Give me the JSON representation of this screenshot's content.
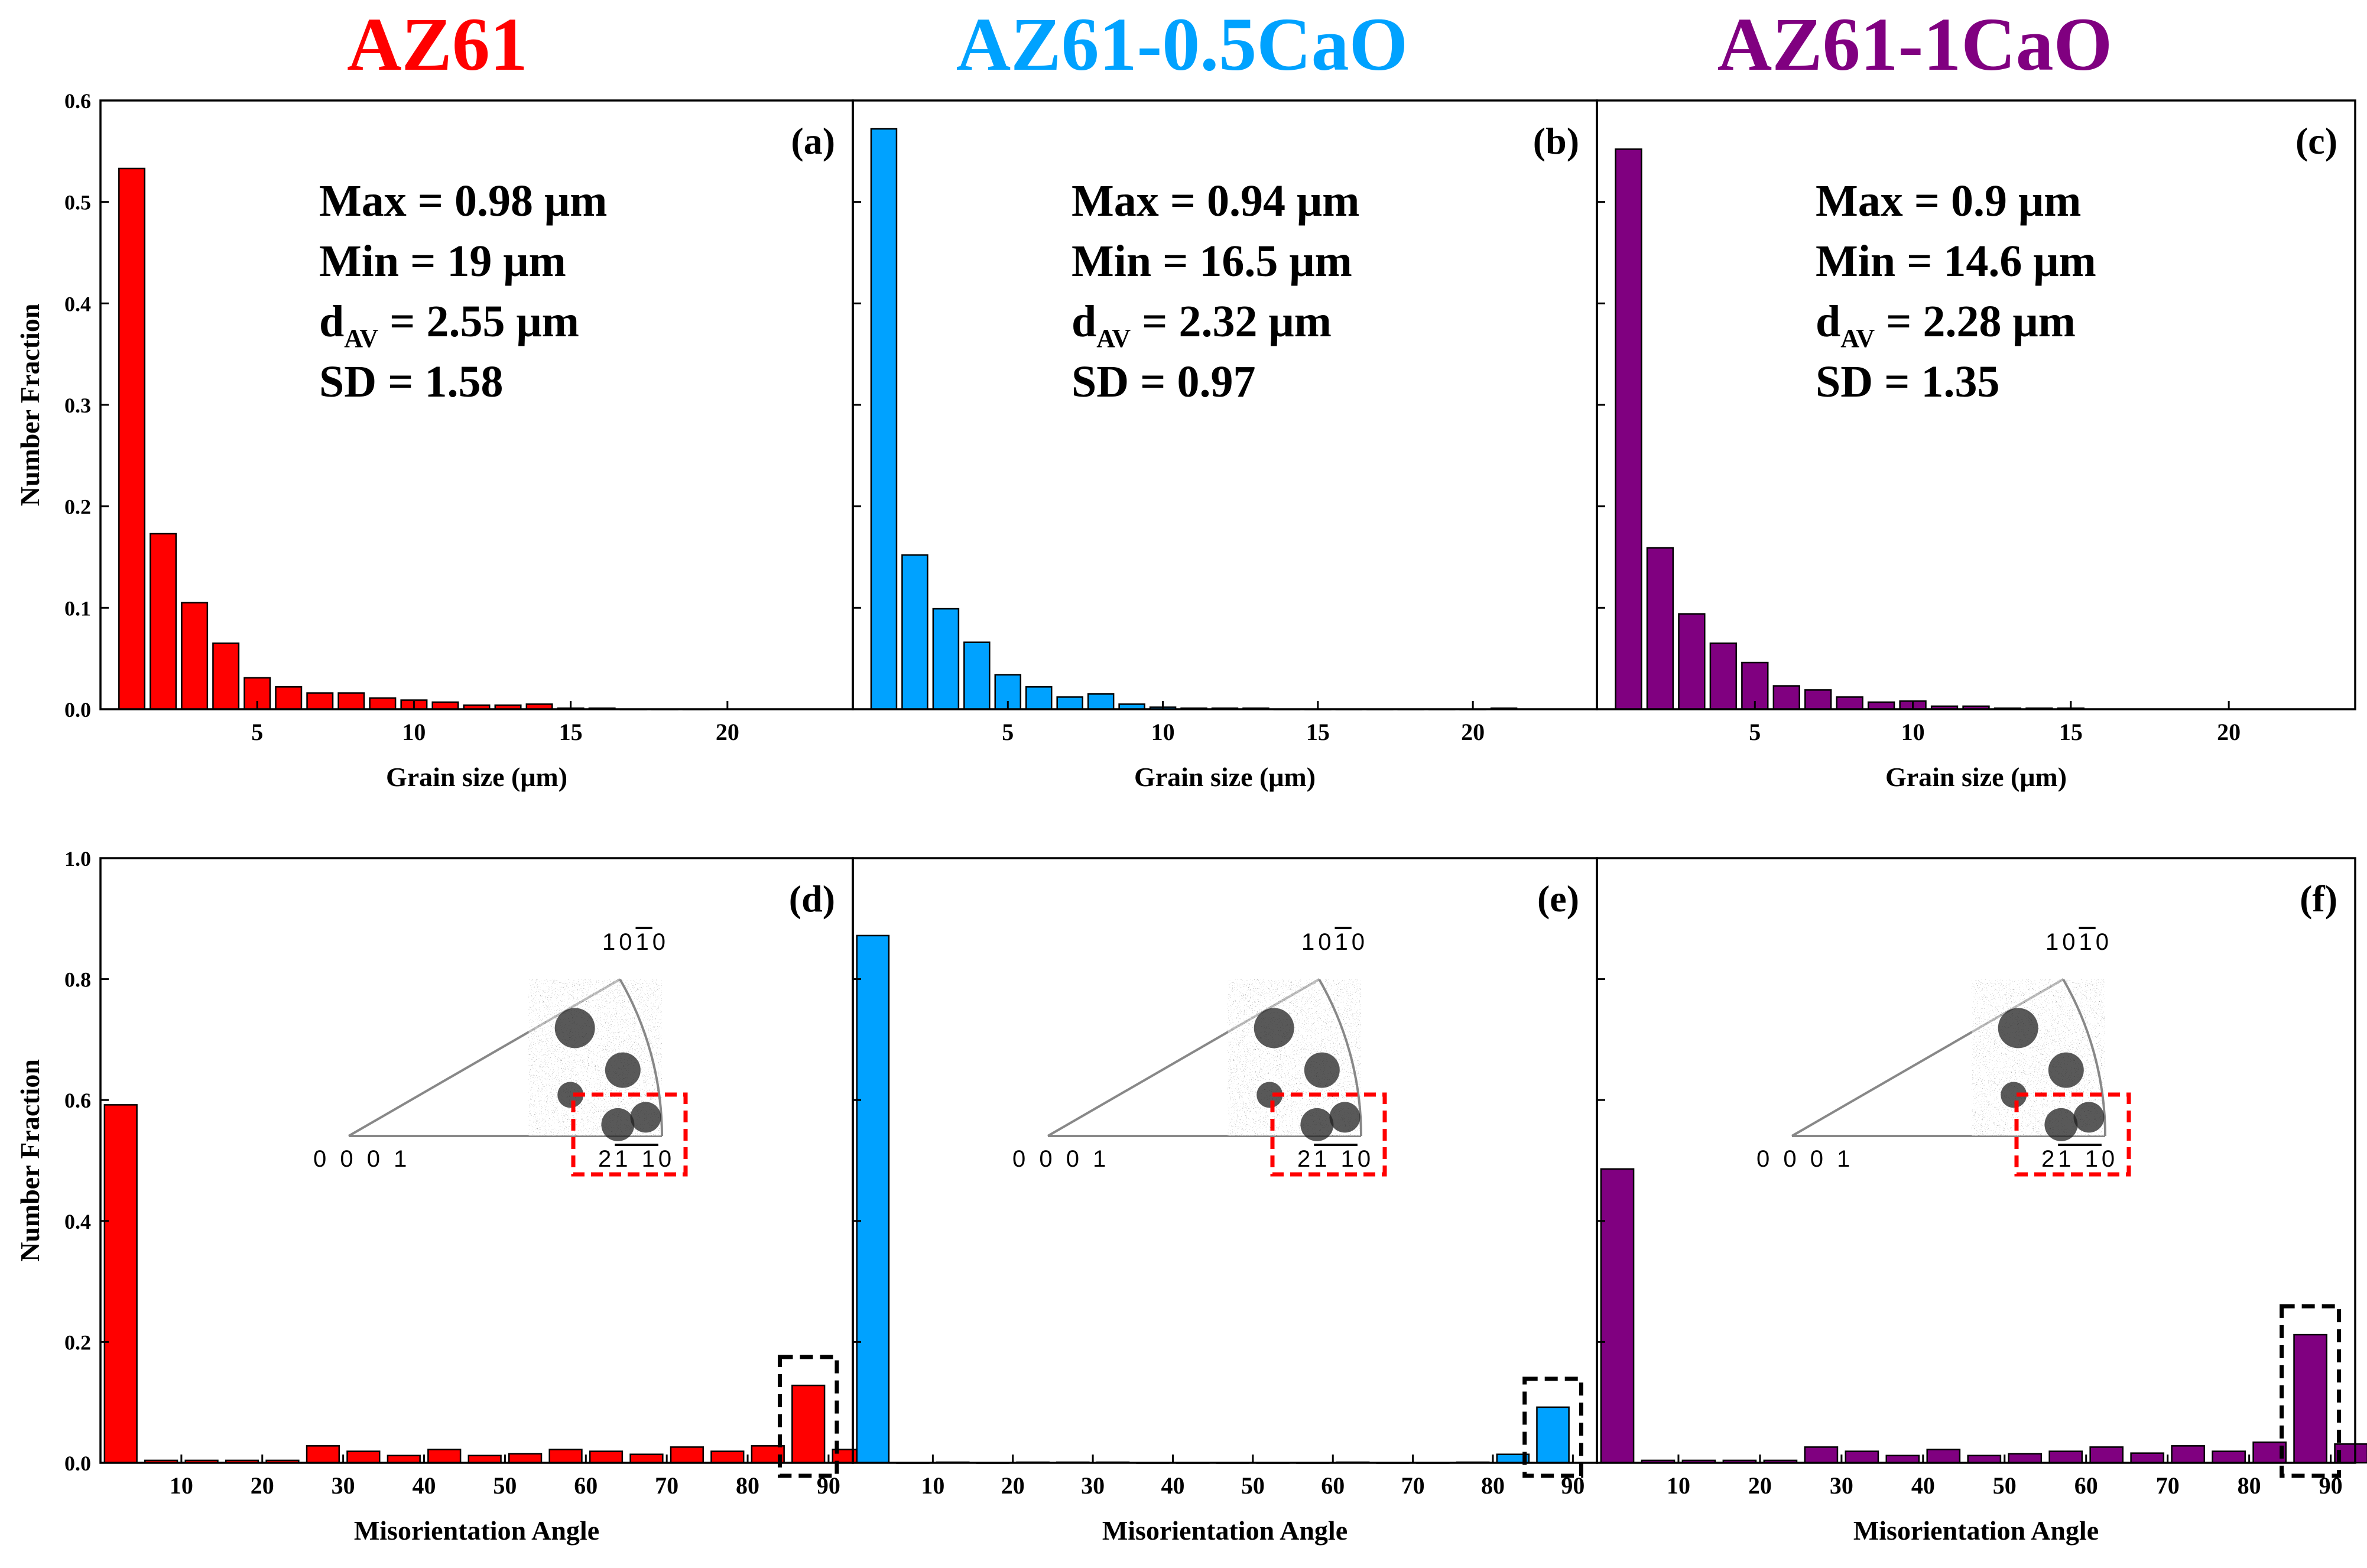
{
  "colors": {
    "AZ61": "#ff0000",
    "AZ61-0.5CaO": "#00a2ff",
    "AZ61-1CaO": "#800080",
    "axis": "#000000",
    "highlight_black": "#000000",
    "highlight_red": "#ff0000"
  },
  "chart_data": [
    {
      "type": "bar",
      "panel": "(a)",
      "series_title": "AZ61",
      "xlabel": "Grain size (μm)",
      "ylabel": "Number Fraction",
      "xlim": [
        0,
        24
      ],
      "ylim": [
        0,
        0.6
      ],
      "xticks": [
        5,
        10,
        15,
        20
      ],
      "yticks": [
        0.0,
        0.1,
        0.2,
        0.3,
        0.4,
        0.5,
        0.6
      ],
      "ytick_labels": [
        "0.0",
        "0.1",
        "0.2",
        "0.3",
        "0.4",
        "0.5",
        "0.6"
      ],
      "x": [
        1,
        2,
        3,
        4,
        5,
        6,
        7,
        8,
        9,
        10,
        11,
        12,
        13,
        14,
        15,
        16,
        17,
        18,
        19
      ],
      "values": [
        0.533,
        0.173,
        0.105,
        0.065,
        0.031,
        0.022,
        0.016,
        0.016,
        0.011,
        0.009,
        0.007,
        0.004,
        0.004,
        0.005,
        0.001,
        0.001,
        0.0,
        0.0,
        0.0
      ],
      "stats": [
        "Max = 0.98 μm",
        "Min = 19 μm",
        "SD = 1.58"
      ],
      "dav": {
        "prefix": "d",
        "sub": "AV",
        "rest": " = 2.55 μm"
      }
    },
    {
      "type": "bar",
      "panel": "(b)",
      "series_title": "AZ61-0.5CaO",
      "xlabel": "Grain size (μm)",
      "ylabel": "",
      "xlim": [
        0,
        24
      ],
      "ylim": [
        0,
        0.6
      ],
      "xticks": [
        5,
        10,
        15,
        20
      ],
      "yticks": [
        0.0,
        0.1,
        0.2,
        0.3,
        0.4,
        0.5,
        0.6
      ],
      "x": [
        1,
        2,
        3,
        4,
        5,
        6,
        7,
        8,
        9,
        10,
        11,
        12,
        13,
        14,
        15,
        16,
        17,
        18,
        19,
        20,
        21
      ],
      "values": [
        0.572,
        0.152,
        0.099,
        0.066,
        0.034,
        0.022,
        0.012,
        0.015,
        0.005,
        0.002,
        0.001,
        0.001,
        0.001,
        0.0,
        0.0,
        0.0,
        0.0,
        0.0,
        0.0,
        0.0,
        0.001
      ],
      "stats": [
        "Max = 0.94 μm",
        "Min = 16.5 μm",
        "SD = 0.97"
      ],
      "dav": {
        "prefix": "d",
        "sub": "AV",
        "rest": " = 2.32 μm"
      }
    },
    {
      "type": "bar",
      "panel": "(c)",
      "series_title": "AZ61-1CaO",
      "xlabel": "Grain size (μm)",
      "ylabel": "",
      "xlim": [
        0,
        24
      ],
      "ylim": [
        0,
        0.6
      ],
      "xticks": [
        5,
        10,
        15,
        20
      ],
      "yticks": [
        0.0,
        0.1,
        0.2,
        0.3,
        0.4,
        0.5,
        0.6
      ],
      "x": [
        1,
        2,
        3,
        4,
        5,
        6,
        7,
        8,
        9,
        10,
        11,
        12,
        13,
        14,
        15
      ],
      "values": [
        0.552,
        0.159,
        0.094,
        0.065,
        0.046,
        0.023,
        0.019,
        0.012,
        0.007,
        0.008,
        0.003,
        0.003,
        0.001,
        0.001,
        0.001
      ],
      "stats": [
        "Max = 0.9 μm",
        "Min = 14.6 μm",
        "SD =  1.35"
      ],
      "dav": {
        "prefix": "d",
        "sub": "AV",
        "rest": " = 2.28 μm"
      }
    },
    {
      "type": "bar",
      "panel": "(d)",
      "xlabel": "Misorientation Angle",
      "ylabel": "Number Fraction",
      "xlim": [
        0,
        93
      ],
      "ylim": [
        0,
        1.0
      ],
      "xticks": [
        10,
        20,
        30,
        40,
        50,
        60,
        70,
        80,
        90
      ],
      "yticks": [
        0.0,
        0.2,
        0.4,
        0.6,
        0.8,
        1.0
      ],
      "ytick_labels": [
        "0.0",
        "0.2",
        "0.4",
        "0.6",
        "0.8",
        "1.0"
      ],
      "x": [
        2.5,
        7.5,
        12.5,
        17.5,
        22.5,
        27.5,
        32.5,
        37.5,
        42.5,
        47.5,
        52.5,
        57.5,
        62.5,
        67.5,
        72.5,
        77.5,
        82.5,
        87.5,
        92.5
      ],
      "values": [
        0.592,
        0.004,
        0.004,
        0.004,
        0.004,
        0.028,
        0.019,
        0.012,
        0.022,
        0.012,
        0.015,
        0.022,
        0.019,
        0.014,
        0.026,
        0.019,
        0.028,
        0.128,
        0.022
      ],
      "highlight_bin": 87.5,
      "pole_labels": {
        "top": "10",
        "top_bar": "1",
        "top_end": "0",
        "left": "0 0 0 1",
        "right_pre": "2",
        "right_bar": "1 1",
        "right_end": "0"
      }
    },
    {
      "type": "bar",
      "panel": "(e)",
      "xlabel": "Misorientation Angle",
      "ylabel": "",
      "xlim": [
        0,
        93
      ],
      "ylim": [
        0,
        1.0
      ],
      "xticks": [
        10,
        20,
        30,
        40,
        50,
        60,
        70,
        80,
        90
      ],
      "yticks": [
        0.0,
        0.2,
        0.4,
        0.6,
        0.8,
        1.0
      ],
      "x": [
        2.5,
        7.5,
        12.5,
        17.5,
        22.5,
        27.5,
        32.5,
        37.5,
        42.5,
        47.5,
        52.5,
        57.5,
        62.5,
        67.5,
        72.5,
        77.5,
        82.5,
        87.5
      ],
      "values": [
        0.872,
        0.0,
        0.001,
        0.0,
        0.001,
        0.001,
        0.001,
        0.0,
        0.0,
        0.0,
        0.0,
        0.0,
        0.001,
        0.0,
        0.0,
        0.001,
        0.014,
        0.092
      ],
      "highlight_bin": 87.5,
      "pole_labels": {
        "top": "10",
        "top_bar": "1",
        "top_end": "0",
        "left": "0 0 0 1",
        "right_pre": "2",
        "right_bar": "1 1",
        "right_end": "0"
      }
    },
    {
      "type": "bar",
      "panel": "(f)",
      "xlabel": "Misorientation Angle",
      "ylabel": "",
      "xlim": [
        0,
        93
      ],
      "ylim": [
        0,
        1.0
      ],
      "xticks": [
        10,
        20,
        30,
        40,
        50,
        60,
        70,
        80,
        90
      ],
      "yticks": [
        0.0,
        0.2,
        0.4,
        0.6,
        0.8,
        1.0
      ],
      "x": [
        2.5,
        7.5,
        12.5,
        17.5,
        22.5,
        27.5,
        32.5,
        37.5,
        42.5,
        47.5,
        52.5,
        57.5,
        62.5,
        67.5,
        72.5,
        77.5,
        82.5,
        87.5,
        92.5
      ],
      "values": [
        0.486,
        0.004,
        0.004,
        0.004,
        0.004,
        0.026,
        0.019,
        0.012,
        0.022,
        0.012,
        0.015,
        0.019,
        0.026,
        0.016,
        0.028,
        0.019,
        0.034,
        0.212,
        0.031
      ],
      "highlight_bin": 87.5,
      "pole_labels": {
        "top": "10",
        "top_bar": "1",
        "top_end": "0",
        "left": "0 0 0 1",
        "right_pre": "2",
        "right_bar": "1 1",
        "right_end": "0"
      }
    }
  ]
}
